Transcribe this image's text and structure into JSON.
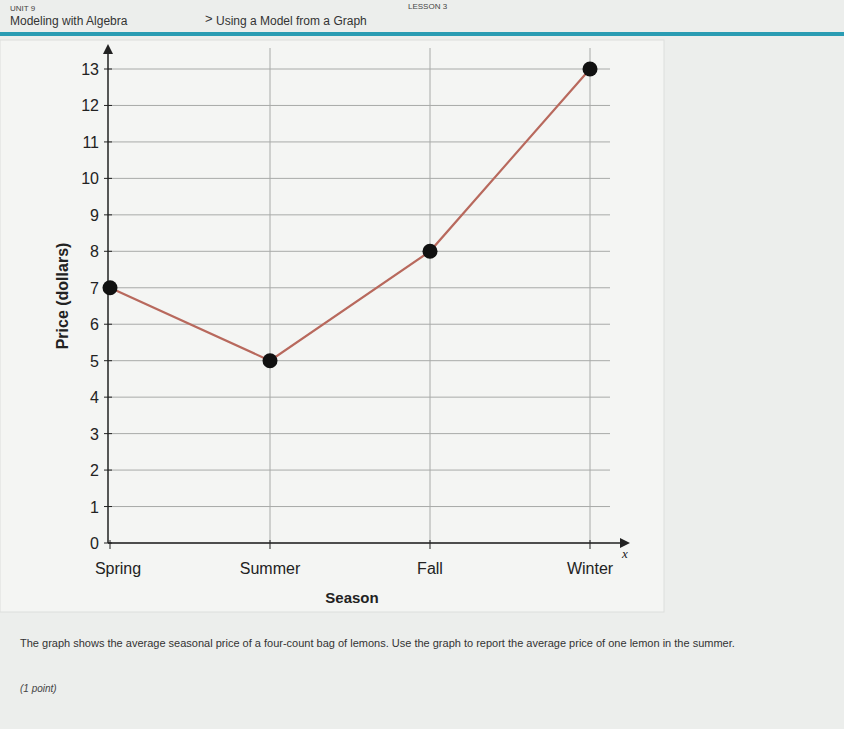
{
  "header": {
    "unit": "UNIT 9",
    "lesson": "LESSON 3",
    "course": "Modeling with Algebra",
    "separator": ">",
    "topic": "Using a Model from a Graph"
  },
  "chart_data": {
    "type": "line",
    "categories": [
      "Spring",
      "Summer",
      "Fall",
      "Winter"
    ],
    "values": [
      7,
      5,
      8,
      13
    ],
    "color": "#b8695d",
    "marker": "circle",
    "x_label": "Season",
    "y_label": "Price (dollars)",
    "x_axis_symbol": "x",
    "ylim": [
      0,
      13
    ],
    "yticks": [
      0,
      1,
      2,
      3,
      4,
      5,
      6,
      7,
      8,
      9,
      10,
      11,
      12,
      13
    ],
    "grid": true
  },
  "question": {
    "text": "The graph shows the average seasonal price of a four-count bag of lemons. Use the graph to report the average price of one lemon in the summer.",
    "points": "(1 point)"
  }
}
